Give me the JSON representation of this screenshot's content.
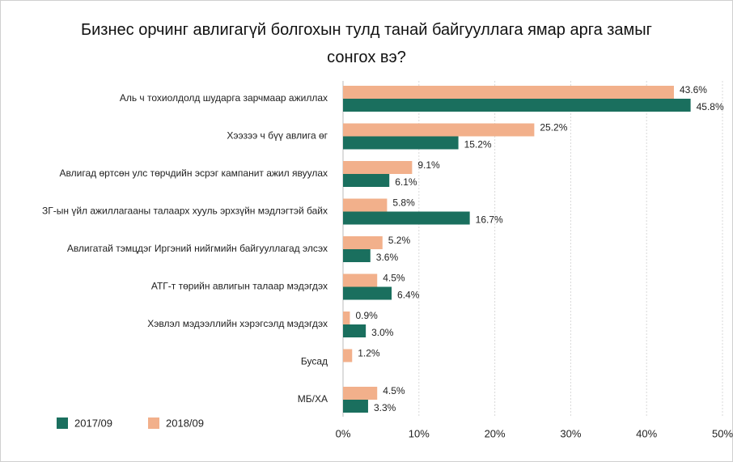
{
  "chart_data": {
    "type": "hbar",
    "title": "Бизнес орчинг авлигагүй болгохын тулд танай байгууллага ямар арга замыг сонгох вэ?",
    "categories": [
      "Аль ч тохиолдолд шударга зарчмаар ажиллах",
      "Хээзээ ч бүү авлига өг",
      "Авлигад өртсөн улс төрчдийн эсрэг кампанит ажил явуулах",
      "ЗГ-ын үйл ажиллагааны талаарх хууль эрхзүйн мэдлэгтэй байх",
      "Авлигатай тэмцдэг Иргэний нийгмийн байгууллагад элсэх",
      "АТГ-т төрийн авлигын талаар мэдэгдэх",
      "Хэвлэл мэдээллийн хэрэгсэлд мэдэгдэх",
      "Бусад",
      "МБ/ХА"
    ],
    "series": [
      {
        "name": "2017/09",
        "color": "#1a6f5e",
        "values": [
          45.8,
          15.2,
          6.1,
          16.7,
          3.6,
          6.4,
          3.0,
          null,
          3.3
        ],
        "value_labels": [
          "45.8%",
          "15.2%",
          "6.1%",
          "16.7%",
          "3.6%",
          "6.4%",
          "3.0%",
          null,
          "3.3%"
        ]
      },
      {
        "name": "2018/09",
        "color": "#f2b08b",
        "values": [
          43.6,
          25.2,
          9.1,
          5.8,
          5.2,
          4.5,
          0.9,
          1.2,
          4.5
        ],
        "value_labels": [
          "43.6%",
          "25.2%",
          "9.1%",
          "5.8%",
          "5.2%",
          "4.5%",
          "0.9%",
          "1.2%",
          "4.5%"
        ]
      }
    ],
    "xlim": [
      0,
      50
    ],
    "xticks": [
      {
        "value": 0,
        "label": "0%"
      },
      {
        "value": 10,
        "label": "10%"
      },
      {
        "value": 20,
        "label": "20%"
      },
      {
        "value": 30,
        "label": "30%"
      },
      {
        "value": 40,
        "label": "40%"
      },
      {
        "value": 50,
        "label": "50%"
      }
    ],
    "grid": true,
    "legend": "bottom-left"
  }
}
